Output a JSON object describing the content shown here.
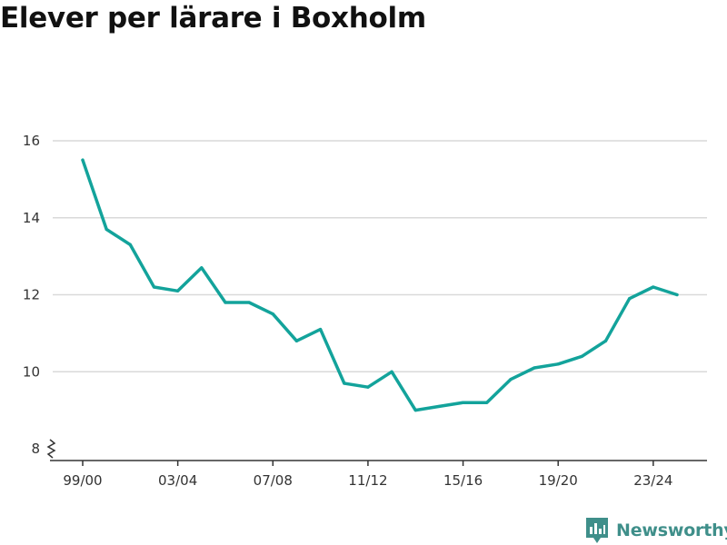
{
  "title": "Elever per lärare i Boxholm",
  "brand": {
    "name": "Newsworthy",
    "icon": "bar-chart-speech-bubble-icon",
    "color": "#3f8f8a"
  },
  "colors": {
    "line": "#13a39b",
    "grid": "#d9d9d9",
    "axis": "#333333"
  },
  "chart_data": {
    "type": "line",
    "title": "Elever per lärare i Boxholm",
    "xlabel": "",
    "ylabel": "",
    "ylim": [
      8,
      16
    ],
    "yticks": [
      8,
      10,
      12,
      14,
      16
    ],
    "y_axis_break": true,
    "grid": true,
    "x": [
      "99/00",
      "00/01",
      "01/02",
      "02/03",
      "03/04",
      "04/05",
      "05/06",
      "06/07",
      "07/08",
      "08/09",
      "09/10",
      "10/11",
      "11/12",
      "12/13",
      "13/14",
      "14/15",
      "15/16",
      "16/17",
      "17/18",
      "18/19",
      "19/20",
      "20/21",
      "21/22",
      "22/23",
      "23/24",
      "24/25"
    ],
    "xtick_labels": [
      "99/00",
      "03/04",
      "07/08",
      "11/12",
      "15/16",
      "19/20",
      "23/24"
    ],
    "series": [
      {
        "values": [
          15.5,
          13.7,
          13.3,
          12.2,
          12.1,
          12.7,
          11.8,
          11.8,
          11.5,
          10.8,
          11.1,
          9.7,
          9.6,
          10.0,
          9.0,
          9.1,
          9.2,
          9.2,
          9.8,
          10.1,
          10.2,
          10.4,
          10.8,
          11.9,
          12.2,
          12.0
        ]
      }
    ]
  }
}
